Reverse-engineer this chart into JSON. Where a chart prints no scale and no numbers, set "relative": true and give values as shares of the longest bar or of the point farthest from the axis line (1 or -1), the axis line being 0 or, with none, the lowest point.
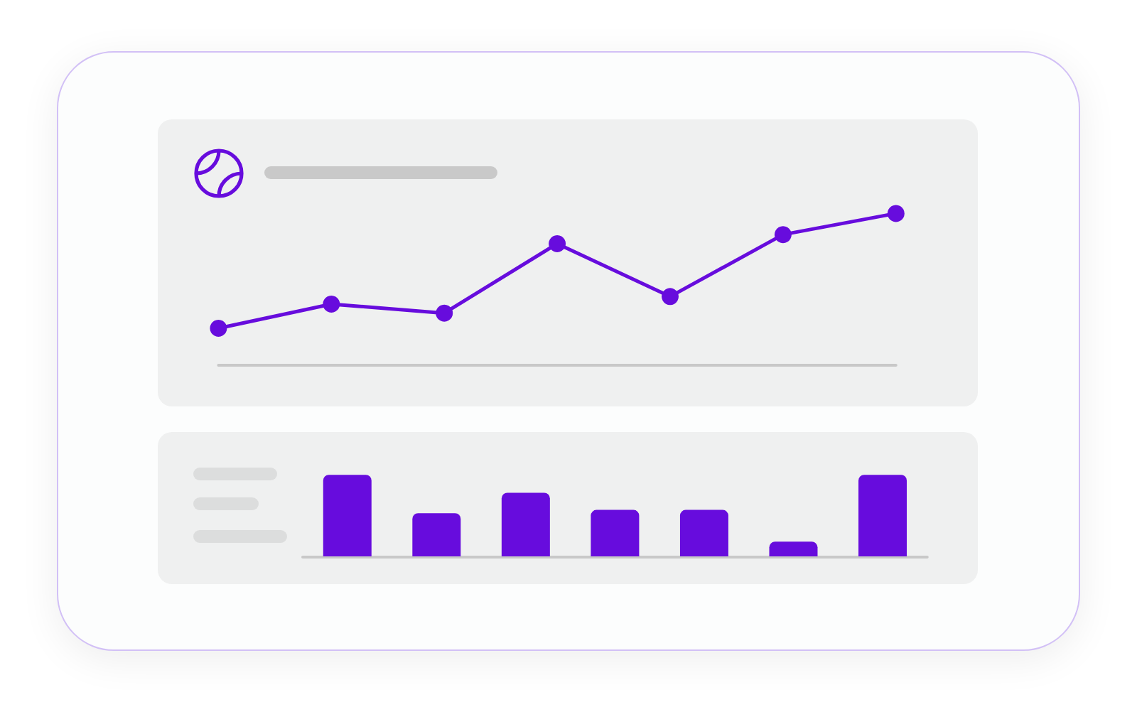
{
  "chart_data": [
    {
      "type": "line",
      "relative": true,
      "categories": [
        null,
        null,
        null,
        null,
        null,
        null,
        null
      ],
      "values": [
        0.24,
        0.4,
        0.34,
        0.8,
        0.45,
        0.86,
        1
      ],
      "color": "#670cdd",
      "marker": "circle",
      "line_style": "solid"
    },
    {
      "type": "bar",
      "relative": true,
      "categories": [
        null,
        null,
        null,
        null,
        null,
        null,
        null
      ],
      "values": [
        1,
        0.53,
        0.78,
        0.57,
        0.57,
        0.18,
        1
      ],
      "color": "#670cdd"
    }
  ]
}
